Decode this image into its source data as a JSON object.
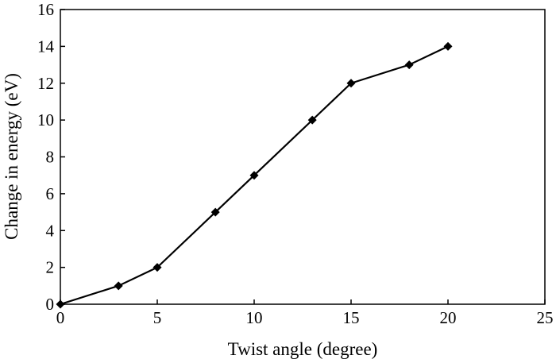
{
  "chart_data": {
    "type": "line",
    "title": "",
    "xlabel": "Twist angle (degree)",
    "ylabel": "Change in energy (eV)",
    "xlim": [
      0,
      25
    ],
    "ylim": [
      0,
      16
    ],
    "xticks": [
      0,
      5,
      10,
      15,
      20,
      25
    ],
    "yticks": [
      0,
      2,
      4,
      6,
      8,
      10,
      12,
      14,
      16
    ],
    "grid": false,
    "legend": "none",
    "marker": "diamond",
    "series": [
      {
        "x": [
          0,
          3,
          5,
          8,
          10,
          13,
          15,
          18,
          20
        ],
        "y": [
          0,
          1,
          2,
          5,
          7,
          10,
          12,
          13,
          14
        ],
        "color": "#000000"
      }
    ]
  }
}
